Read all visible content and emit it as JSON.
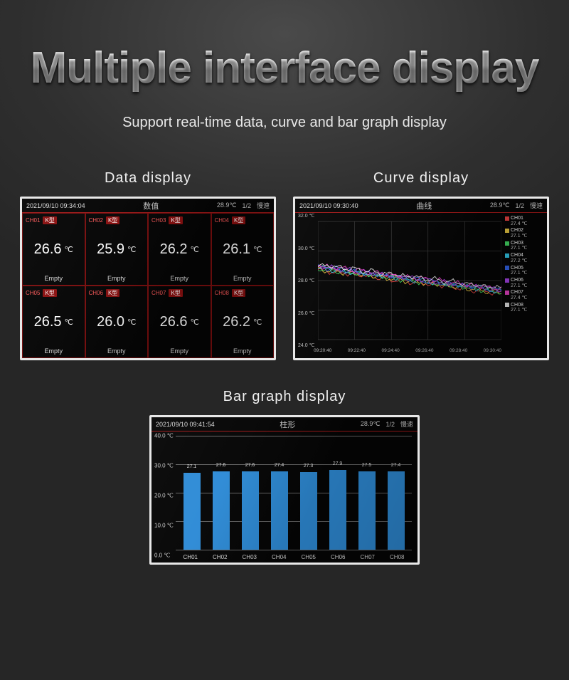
{
  "hero": {
    "title": "Multiple interface display",
    "subtitle": "Support real-time data, curve and bar graph display"
  },
  "panels": {
    "data": {
      "title": "Data display",
      "header": {
        "timestamp": "2021/09/10 09:34:04",
        "center": "数值",
        "temp": "28.9℃",
        "page": "1/2",
        "mode": "慢速"
      },
      "cells": [
        {
          "ch": "CH01",
          "type": "K型",
          "value": "26.6",
          "unit": "℃",
          "status": "Empty"
        },
        {
          "ch": "CH02",
          "type": "K型",
          "value": "25.9",
          "unit": "℃",
          "status": "Empty"
        },
        {
          "ch": "CH03",
          "type": "K型",
          "value": "26.2",
          "unit": "℃",
          "status": "Empty"
        },
        {
          "ch": "CH04",
          "type": "K型",
          "value": "26.1",
          "unit": "℃",
          "status": "Empty"
        },
        {
          "ch": "CH05",
          "type": "K型",
          "value": "26.5",
          "unit": "℃",
          "status": "Empty"
        },
        {
          "ch": "CH06",
          "type": "K型",
          "value": "26.0",
          "unit": "℃",
          "status": "Empty"
        },
        {
          "ch": "CH07",
          "type": "K型",
          "value": "26.6",
          "unit": "℃",
          "status": "Empty"
        },
        {
          "ch": "CH08",
          "type": "K型",
          "value": "26.2",
          "unit": "℃",
          "status": "Empty"
        }
      ],
      "cell_border_color": "#7a0e0e",
      "ch_label_color": "#ff5a5a"
    },
    "curve": {
      "title": "Curve display",
      "header": {
        "timestamp": "2021/09/10 09:30:40",
        "center": "曲线",
        "temp": "28.9℃",
        "page": "1/2",
        "mode": "慢速"
      },
      "type": "line",
      "ylim": [
        24,
        32
      ],
      "yticks": [
        24,
        26,
        28,
        30,
        32
      ],
      "ytick_labels": [
        "24.0 ℃",
        "26.0 ℃",
        "28.0 ℃",
        "30.0 ℃",
        "32.0 ℃"
      ],
      "xtick_labels": [
        "09:20:40",
        "09:22:40",
        "09:24:40",
        "09:26:40",
        "09:28:40",
        "09:30:40"
      ],
      "series": [
        {
          "ch": "CH01",
          "color": "#e04040",
          "value": "27.4 ℃"
        },
        {
          "ch": "CH02",
          "color": "#e0c040",
          "value": "27.1 ℃"
        },
        {
          "ch": "CH03",
          "color": "#40d060",
          "value": "27.1 ℃"
        },
        {
          "ch": "CH04",
          "color": "#30c0e0",
          "value": "27.2 ℃"
        },
        {
          "ch": "CH05",
          "color": "#3060e0",
          "value": "27.1 ℃"
        },
        {
          "ch": "CH06",
          "color": "#a040e0",
          "value": "27.1 ℃"
        },
        {
          "ch": "CH07",
          "color": "#e040c0",
          "value": "27.4 ℃"
        },
        {
          "ch": "CH08",
          "color": "#e0e0e0",
          "value": "27.1 ℃"
        }
      ],
      "grid_color": "#555555",
      "background_color": "#050505"
    },
    "bar": {
      "title": "Bar graph display",
      "header": {
        "timestamp": "2021/09/10 09:41:54",
        "center": "柱形",
        "temp": "28.9℃",
        "page": "1/2",
        "mode": "慢速"
      },
      "type": "bar",
      "ylim": [
        0,
        40
      ],
      "yticks": [
        0,
        10,
        20,
        30,
        40
      ],
      "ytick_labels": [
        "0.0 ℃",
        "10.0 ℃",
        "20.0 ℃",
        "30.0 ℃",
        "40.0 ℃"
      ],
      "categories": [
        "CH01",
        "CH02",
        "CH03",
        "CH04",
        "CH05",
        "CH06",
        "CH07",
        "CH08"
      ],
      "values": [
        27.1,
        27.6,
        27.6,
        27.4,
        27.3,
        27.9,
        27.5,
        27.4
      ],
      "bar_color": "#2e8bd6",
      "grid_color": "#666666"
    }
  }
}
